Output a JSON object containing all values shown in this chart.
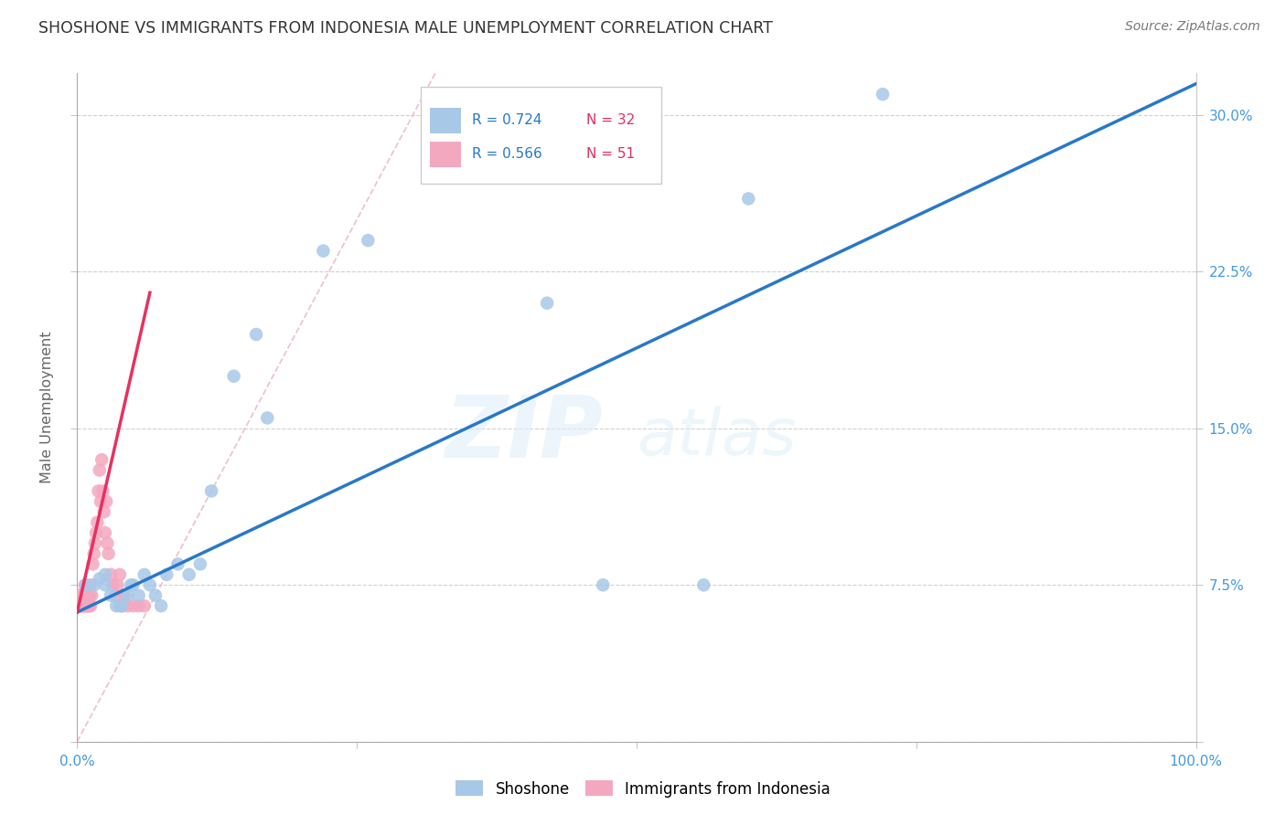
{
  "title": "SHOSHONE VS IMMIGRANTS FROM INDONESIA MALE UNEMPLOYMENT CORRELATION CHART",
  "source": "Source: ZipAtlas.com",
  "ylabel": "Male Unemployment",
  "xlim": [
    0,
    1.0
  ],
  "ylim": [
    0,
    0.32
  ],
  "xticks": [
    0.0,
    0.25,
    0.5,
    0.75,
    1.0
  ],
  "xticklabels": [
    "0.0%",
    "",
    "",
    "",
    "100.0%"
  ],
  "yticks": [
    0.0,
    0.075,
    0.15,
    0.225,
    0.3
  ],
  "right_yticklabels": [
    "",
    "7.5%",
    "15.0%",
    "22.5%",
    "30.0%"
  ],
  "grid_color": "#d0d0d0",
  "background_color": "#ffffff",
  "watermark_zip": "ZIP",
  "watermark_atlas": "atlas",
  "shoshone_color": "#a8c8e8",
  "indonesia_color": "#f4a8c0",
  "shoshone_line_color": "#2878c8",
  "indonesia_line_color": "#e83060",
  "ref_line_color": "#e8b0c0",
  "tick_color": "#4499dd",
  "legend_r1": "R = 0.724",
  "legend_n1": "N = 32",
  "legend_r2": "R = 0.566",
  "legend_n2": "N = 51",
  "shoshone_x": [
    0.008,
    0.015,
    0.02,
    0.025,
    0.025,
    0.03,
    0.035,
    0.038,
    0.04,
    0.045,
    0.048,
    0.05,
    0.055,
    0.06,
    0.065,
    0.07,
    0.075,
    0.08,
    0.09,
    0.1,
    0.11,
    0.12,
    0.14,
    0.16,
    0.17,
    0.22,
    0.26,
    0.47,
    0.56,
    0.72,
    0.42,
    0.6
  ],
  "shoshone_y": [
    0.075,
    0.075,
    0.078,
    0.08,
    0.075,
    0.07,
    0.065,
    0.065,
    0.065,
    0.07,
    0.075,
    0.075,
    0.07,
    0.08,
    0.075,
    0.07,
    0.065,
    0.08,
    0.085,
    0.08,
    0.085,
    0.12,
    0.175,
    0.195,
    0.155,
    0.235,
    0.24,
    0.075,
    0.075,
    0.31,
    0.21,
    0.26
  ],
  "indonesia_x": [
    0.001,
    0.001,
    0.002,
    0.002,
    0.003,
    0.003,
    0.004,
    0.004,
    0.005,
    0.005,
    0.006,
    0.006,
    0.007,
    0.007,
    0.008,
    0.008,
    0.009,
    0.009,
    0.01,
    0.01,
    0.011,
    0.011,
    0.012,
    0.012,
    0.013,
    0.014,
    0.015,
    0.016,
    0.017,
    0.018,
    0.019,
    0.02,
    0.021,
    0.022,
    0.023,
    0.024,
    0.025,
    0.026,
    0.027,
    0.028,
    0.03,
    0.032,
    0.034,
    0.036,
    0.038,
    0.04,
    0.042,
    0.045,
    0.05,
    0.055,
    0.06
  ],
  "indonesia_y": [
    0.065,
    0.07,
    0.065,
    0.07,
    0.065,
    0.07,
    0.065,
    0.07,
    0.065,
    0.07,
    0.065,
    0.07,
    0.065,
    0.075,
    0.065,
    0.07,
    0.065,
    0.07,
    0.065,
    0.07,
    0.065,
    0.07,
    0.065,
    0.075,
    0.07,
    0.085,
    0.09,
    0.095,
    0.1,
    0.105,
    0.12,
    0.13,
    0.115,
    0.135,
    0.12,
    0.11,
    0.1,
    0.115,
    0.095,
    0.09,
    0.08,
    0.075,
    0.07,
    0.075,
    0.08,
    0.065,
    0.07,
    0.065,
    0.065,
    0.065,
    0.065
  ],
  "shoshone_trend_x": [
    0.0,
    1.0
  ],
  "shoshone_trend_y": [
    0.062,
    0.315
  ],
  "indonesia_trend_x": [
    0.0,
    0.065
  ],
  "indonesia_trend_y": [
    0.062,
    0.215
  ],
  "ref_line_x": [
    0.0,
    0.35
  ],
  "ref_line_y": [
    0.0,
    0.35
  ]
}
